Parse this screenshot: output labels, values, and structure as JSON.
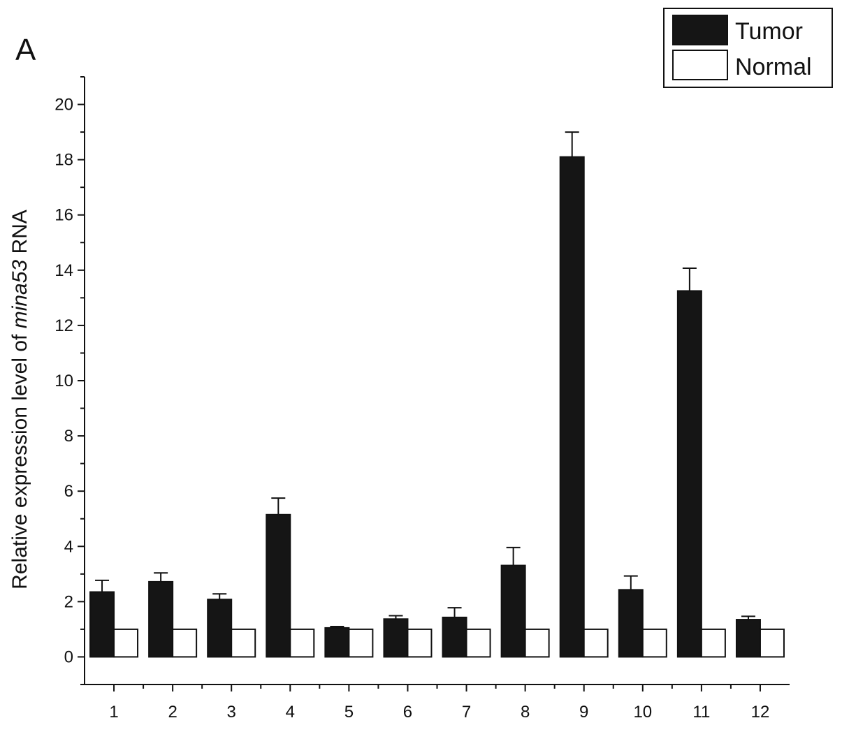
{
  "panel_label": "A",
  "chart_data": {
    "type": "bar",
    "categories": [
      "1",
      "2",
      "3",
      "4",
      "5",
      "6",
      "7",
      "8",
      "9",
      "10",
      "11",
      "12"
    ],
    "series": [
      {
        "name": "Tumor",
        "color": "#151515",
        "values": [
          2.35,
          2.72,
          2.08,
          5.15,
          1.05,
          1.37,
          1.43,
          3.31,
          18.1,
          2.43,
          13.25,
          1.35
        ],
        "errors": [
          0.42,
          0.32,
          0.2,
          0.6,
          0.05,
          0.12,
          0.35,
          0.65,
          0.9,
          0.5,
          0.82,
          0.12
        ]
      },
      {
        "name": "Normal",
        "color": "#ffffff",
        "values": [
          1,
          1,
          1,
          1,
          1,
          1,
          1,
          1,
          1,
          1,
          1,
          1
        ],
        "errors": [
          0,
          0,
          0,
          0,
          0,
          0,
          0,
          0,
          0,
          0,
          0,
          0
        ]
      }
    ],
    "ylabel": {
      "prefix": "Relative expression level of ",
      "italic": "mina53",
      "suffix": " RNA"
    },
    "xlabel": "",
    "ylim": [
      -1,
      21
    ],
    "yticks": [
      0,
      2,
      4,
      6,
      8,
      10,
      12,
      14,
      16,
      18,
      20
    ],
    "legend_position": "top-right",
    "grid": false
  }
}
